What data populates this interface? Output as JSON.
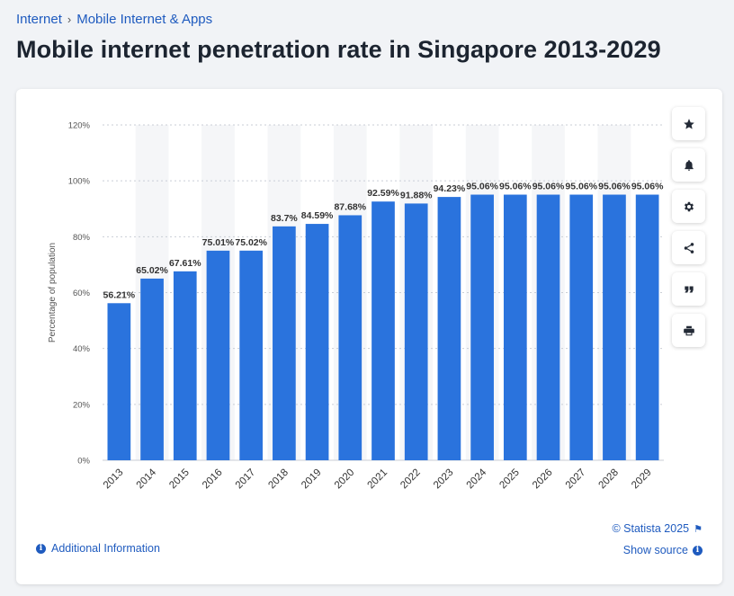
{
  "breadcrumb": {
    "items": [
      "Internet",
      "Mobile Internet & Apps"
    ],
    "separator": "›"
  },
  "page_title": "Mobile internet penetration rate in Singapore 2013-2029",
  "toolbar": {
    "icons": [
      "star-icon",
      "bell-icon",
      "gear-icon",
      "share-icon",
      "quote-icon",
      "print-icon"
    ]
  },
  "footer": {
    "copyright": "© Statista 2025",
    "show_source": "Show source",
    "additional_info": "Additional Information"
  },
  "colors": {
    "bar": "#2a73dd",
    "accent": "#1f5bbf",
    "stripe": "#f5f6f8",
    "grid": "#c9ced6"
  },
  "chart_data": {
    "type": "bar",
    "title": "Mobile internet penetration rate in Singapore 2013-2029",
    "xlabel": "",
    "ylabel": "Percentage of population",
    "categories": [
      "2013",
      "2014",
      "2015",
      "2016",
      "2017",
      "2018",
      "2019",
      "2020",
      "2021",
      "2022",
      "2023",
      "2024",
      "2025",
      "2026",
      "2027",
      "2028",
      "2029"
    ],
    "values": [
      56.21,
      65.02,
      67.61,
      75.01,
      75.02,
      83.7,
      84.59,
      87.68,
      92.59,
      91.88,
      94.23,
      95.06,
      95.06,
      95.06,
      95.06,
      95.06,
      95.06
    ],
    "data_labels": [
      "56.21%",
      "65.02%",
      "67.61%",
      "75.01%",
      "75.02%",
      "83.7%",
      "84.59%",
      "87.68%",
      "92.59%",
      "91.88%",
      "94.23%",
      "95.06%",
      "95.06%",
      "95.06%",
      "95.06%",
      "95.06%",
      "95.06%"
    ],
    "ylim": [
      0,
      120
    ],
    "yticks": [
      0,
      20,
      40,
      60,
      80,
      100,
      120
    ],
    "ytick_labels": [
      "0%",
      "20%",
      "40%",
      "60%",
      "80%",
      "100%",
      "120%"
    ],
    "grid": true
  }
}
